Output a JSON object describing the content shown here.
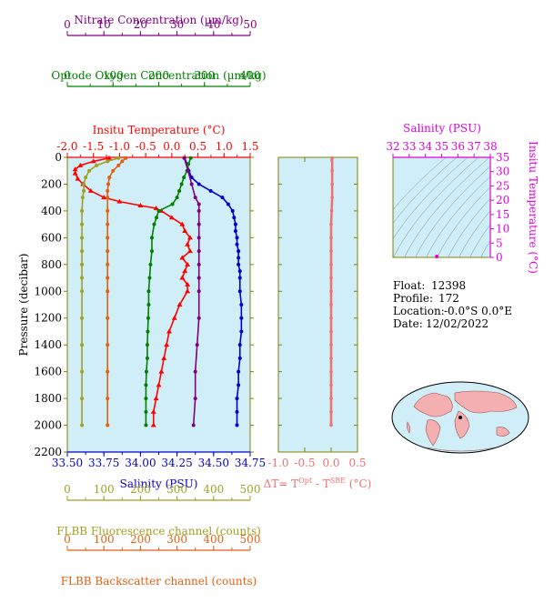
{
  "colors": {
    "nitrate": "#800080",
    "oxygen": "#008000",
    "temperature": "#ff0000",
    "salinity": "#0000cc",
    "fluorescence": "#a0a020",
    "backscatter": "#e06010",
    "delta": "#f07070",
    "magenta": "#e000e0",
    "panel_bg": "#d0eef7",
    "axis": "#808000"
  },
  "chart_data": [
    {
      "type": "line",
      "ylabel": "Pressure (decibar)",
      "ylim": [
        2200,
        0
      ],
      "y_ticks": [
        0,
        200,
        400,
        600,
        800,
        1000,
        1200,
        1400,
        1600,
        1800,
        2000,
        2200
      ],
      "axes": {
        "nitrate": {
          "label": "Nitrate Concentration (µm/kg)",
          "range": [
            0,
            50
          ],
          "ticks": [
            0,
            10,
            20,
            30,
            40,
            50
          ]
        },
        "oxygen": {
          "label": "Optode Oxygen Concentration (µm/kg)",
          "range": [
            0,
            400
          ],
          "ticks": [
            0,
            100,
            200,
            300,
            400
          ]
        },
        "temperature": {
          "label": "Insitu Temperature (°C)",
          "range": [
            -2.0,
            1.5
          ],
          "ticks": [
            "-2.0",
            "-1.5",
            "-1.0",
            "-0.5",
            "0.0",
            "0.5",
            "1.0",
            "1.5"
          ]
        },
        "salinity": {
          "label": "Salinity (PSU)",
          "range": [
            33.5,
            34.75
          ],
          "ticks": [
            "33.50",
            "33.75",
            "34.00",
            "34.25",
            "34.50",
            "34.75"
          ]
        },
        "fluorescence": {
          "label": "FLBB Fluorescence channel (counts)",
          "range": [
            0,
            500
          ],
          "ticks": [
            0,
            100,
            200,
            300,
            400,
            500
          ]
        },
        "backscatter": {
          "label": "FLBB Backscatter channel (counts)",
          "range": [
            0,
            500
          ],
          "ticks": [
            0,
            100,
            200,
            300,
            400,
            500
          ]
        }
      },
      "series": [
        {
          "key": "temperature",
          "marker": "triangle",
          "pressure": [
            5,
            30,
            60,
            90,
            120,
            160,
            200,
            250,
            300,
            330,
            360,
            380,
            400,
            450,
            500,
            550,
            600,
            650,
            700,
            750,
            800,
            850,
            900,
            950,
            1000,
            1100,
            1200,
            1300,
            1400,
            1500,
            1600,
            1700,
            1800,
            1900,
            2000
          ],
          "values": [
            -1.2,
            -1.5,
            -1.75,
            -1.85,
            -1.85,
            -1.8,
            -1.7,
            -1.55,
            -1.3,
            -1.0,
            -0.6,
            -0.3,
            -0.2,
            0.0,
            0.2,
            0.25,
            0.35,
            0.3,
            0.35,
            0.2,
            0.3,
            0.25,
            0.2,
            0.3,
            0.3,
            0.15,
            0.05,
            -0.05,
            -0.1,
            -0.15,
            -0.2,
            -0.25,
            -0.3,
            -0.35,
            -0.35
          ]
        },
        {
          "key": "salinity",
          "marker": "circle",
          "pressure": [
            5,
            50,
            100,
            150,
            200,
            250,
            300,
            350,
            400,
            450,
            500,
            550,
            600,
            650,
            700,
            750,
            800,
            850,
            900,
            1000,
            1100,
            1200,
            1300,
            1400,
            1500,
            1600,
            1700,
            1800,
            1900,
            2000
          ],
          "values": [
            34.3,
            34.32,
            34.33,
            34.35,
            34.4,
            34.48,
            34.56,
            34.6,
            34.63,
            34.64,
            34.65,
            34.65,
            34.66,
            34.66,
            34.67,
            34.67,
            34.67,
            34.68,
            34.68,
            34.68,
            34.69,
            34.69,
            34.69,
            34.68,
            34.68,
            34.67,
            34.67,
            34.66,
            34.66,
            34.66
          ]
        },
        {
          "key": "oxygen",
          "marker": "circle",
          "pressure": [
            5,
            50,
            100,
            150,
            200,
            250,
            300,
            350,
            400,
            450,
            500,
            600,
            700,
            800,
            900,
            1000,
            1100,
            1200,
            1300,
            1400,
            1500,
            1600,
            1700,
            1800,
            1900,
            2000
          ],
          "values": [
            270,
            265,
            262,
            255,
            250,
            245,
            240,
            230,
            200,
            195,
            190,
            185,
            185,
            182,
            180,
            178,
            178,
            177,
            176,
            175,
            175,
            173,
            172,
            172,
            172,
            172
          ]
        },
        {
          "key": "nitrate",
          "marker": "circle",
          "pressure": [
            5,
            100,
            200,
            300,
            350,
            400,
            500,
            600,
            700,
            800,
            900,
            1000,
            1200,
            1400,
            1600,
            1800,
            2000
          ],
          "values": [
            32,
            33,
            34,
            35,
            36,
            36,
            36,
            36,
            36,
            36,
            36,
            36,
            36,
            35.5,
            35,
            35,
            34.5
          ]
        },
        {
          "key": "fluorescence",
          "marker": "circle",
          "pressure": [
            5,
            30,
            60,
            100,
            150,
            200,
            250,
            300,
            400,
            500,
            600,
            700,
            800,
            900,
            1000,
            1200,
            1400,
            1600,
            1800,
            2000
          ],
          "values": [
            140,
            110,
            80,
            60,
            50,
            45,
            45,
            42,
            40,
            40,
            40,
            40,
            40,
            40,
            40,
            40,
            40,
            40,
            40,
            40
          ]
        },
        {
          "key": "backscatter",
          "marker": "circle",
          "pressure": [
            5,
            30,
            60,
            100,
            150,
            200,
            250,
            300,
            400,
            500,
            600,
            700,
            800,
            900,
            1000,
            1200,
            1400,
            1600,
            1800,
            2000
          ],
          "values": [
            160,
            150,
            140,
            125,
            115,
            112,
            110,
            110,
            110,
            110,
            110,
            110,
            110,
            110,
            110,
            110,
            110,
            110,
            110,
            110
          ]
        }
      ]
    },
    {
      "type": "line",
      "xlabel": "ΔT= T",
      "xlabel_sup1": "Opt",
      "xlabel_mid": " - T",
      "xlabel_sup2": "SBE",
      "xlabel_end": " (°C)",
      "xlim": [
        -1.0,
        0.5
      ],
      "x_ticks": [
        "-1.0",
        "-0.5",
        "0.0",
        "0.5"
      ],
      "series": [
        {
          "key": "delta",
          "pressure": [
            5,
            100,
            200,
            300,
            400,
            500,
            600,
            700,
            800,
            900,
            1000,
            1100,
            1200,
            1300,
            1400,
            1500,
            1600,
            1700,
            1800,
            1900,
            2000
          ],
          "values": [
            0.02,
            0.02,
            0.02,
            0.02,
            0.01,
            0.0,
            0.0,
            0.0,
            0.0,
            0.0,
            0.0,
            0.0,
            0.0,
            0.0,
            0.0,
            0.0,
            0.0,
            0.0,
            0.0,
            0.0,
            0.0
          ]
        }
      ]
    },
    {
      "type": "scatter",
      "xlabel": "Salinity (PSU)",
      "ylabel": "Insitu Temperature (°C)",
      "xlim": [
        32,
        38
      ],
      "ylim": [
        0,
        35
      ],
      "x_ticks": [
        32,
        33,
        34,
        35,
        36,
        37,
        38
      ],
      "y_ticks": [
        0,
        5,
        10,
        15,
        20,
        25,
        30,
        35
      ],
      "points": [
        {
          "x": 34.7,
          "y": 0.3
        }
      ]
    }
  ],
  "float_info": {
    "float_label": "Float:",
    "float_value": "12398",
    "profile_label": "Profile:",
    "profile_value": "172",
    "location_label": "Location:",
    "location_value": "-0.0°S   0.0°E",
    "date_label": "Date:",
    "date_value": "12/02/2022"
  },
  "map": {
    "icon": "world-map-icon"
  }
}
